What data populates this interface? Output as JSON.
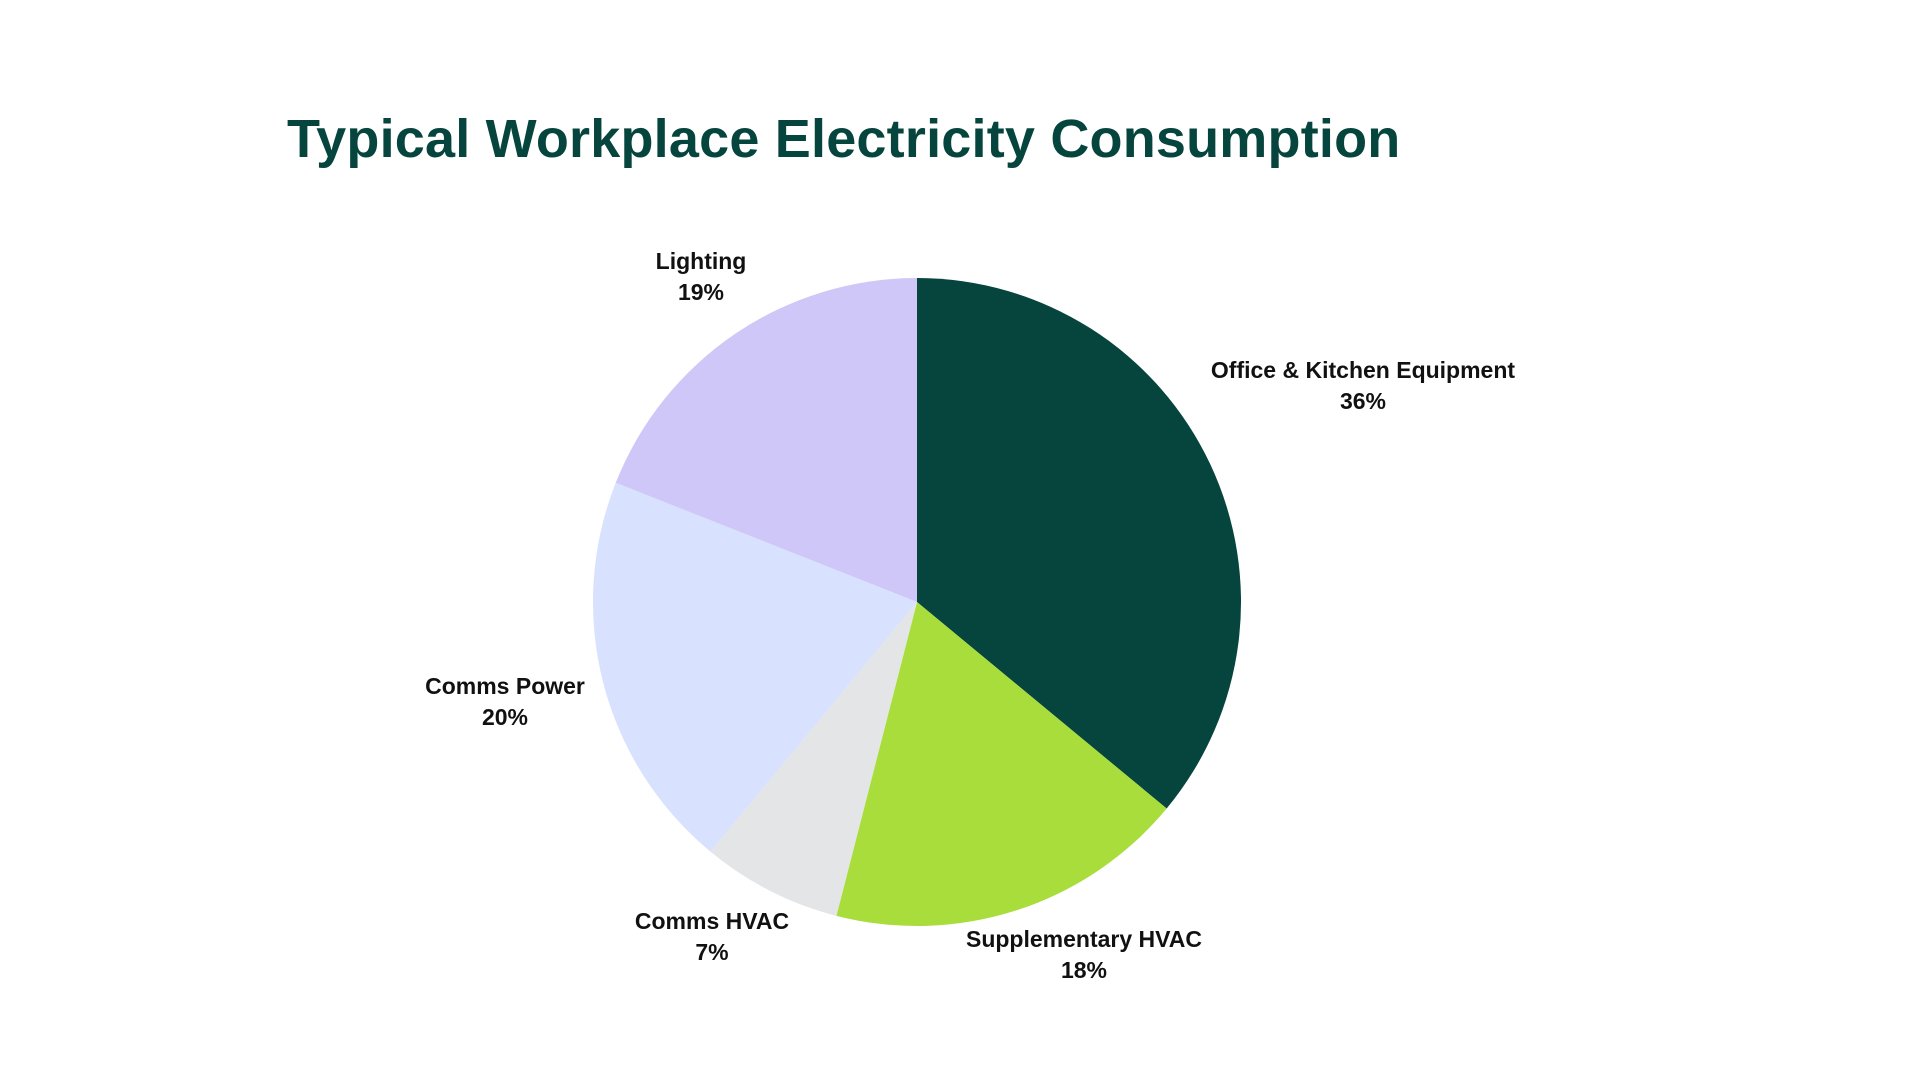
{
  "chart_data": {
    "type": "pie",
    "title": "Typical Workplace Electricity Consumption",
    "slices": [
      {
        "label": "Office & Kitchen Equipment",
        "value": 36,
        "value_label": "36%",
        "color": "#06453d"
      },
      {
        "label": "Supplementary HVAC",
        "value": 18,
        "value_label": "18%",
        "color": "#a8dd3c"
      },
      {
        "label": "Comms HVAC",
        "value": 7,
        "value_label": "7%",
        "color": "#e3e5e6"
      },
      {
        "label": "Comms Power",
        "value": 20,
        "value_label": "20%",
        "color": "#d8e1fd"
      },
      {
        "label": "Lighting",
        "value": 19,
        "value_label": "19%",
        "color": "#cfc7f8"
      }
    ],
    "start_angle": "12 o'clock",
    "direction": "clockwise",
    "legend": "none"
  },
  "colors": {
    "title": "#06453d",
    "background": "#ffffff",
    "label_text": "#111111"
  }
}
